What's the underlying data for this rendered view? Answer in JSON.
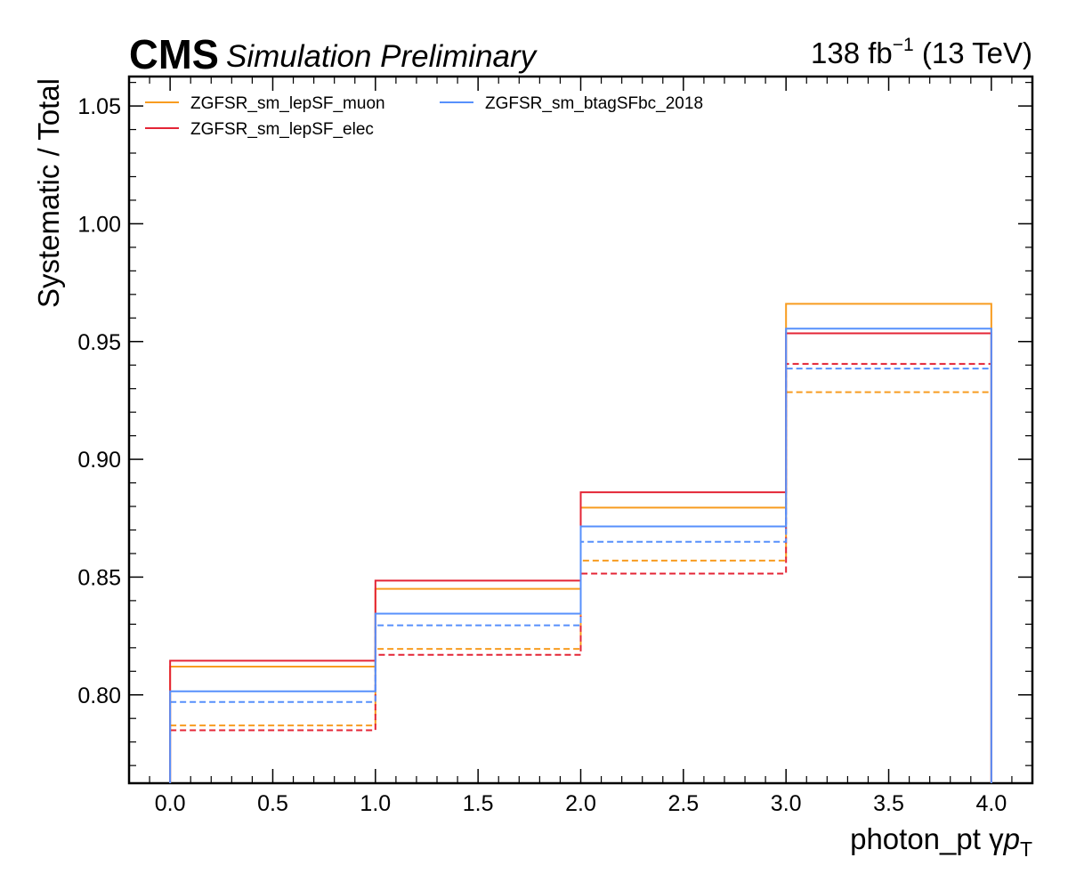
{
  "header": {
    "experiment": "CMS",
    "status": "Simulation Preliminary",
    "lumi_value": "138 fb",
    "lumi_exponent": "−1",
    "energy": "(13 TeV)"
  },
  "chart_data": {
    "type": "step",
    "xlabel_main": "photon_pt",
    "xlabel_symbol": "γ",
    "xlabel_var": "p",
    "xlabel_sub": "T",
    "ylabel": "Systematic / Total",
    "xlim": [
      -0.2,
      4.2
    ],
    "ylim": [
      0.7625,
      1.0625
    ],
    "xticks": [
      0.0,
      0.5,
      1.0,
      1.5,
      2.0,
      2.5,
      3.0,
      3.5,
      4.0
    ],
    "xtick_labels": [
      "0.0",
      "0.5",
      "1.0",
      "1.5",
      "2.0",
      "2.5",
      "3.0",
      "3.5",
      "4.0"
    ],
    "yticks": [
      0.8,
      0.85,
      0.9,
      0.95,
      1.0,
      1.05
    ],
    "ytick_labels": [
      "0.80",
      "0.85",
      "0.90",
      "0.95",
      "1.00",
      "1.05"
    ],
    "bin_edges": [
      0,
      1,
      2,
      3,
      4
    ],
    "grid": false,
    "legend_position": "top-left",
    "series": [
      {
        "name": "ZGFSR_sm_lepSF_muon",
        "color": "#f89c20",
        "up": [
          0.812,
          0.845,
          0.8795,
          0.966
        ],
        "down": [
          0.787,
          0.8195,
          0.857,
          0.9285
        ]
      },
      {
        "name": "ZGFSR_sm_lepSF_elec",
        "color": "#e42536",
        "up": [
          0.8145,
          0.8485,
          0.886,
          0.9535
        ],
        "down": [
          0.785,
          0.817,
          0.8515,
          0.9405
        ]
      },
      {
        "name": "ZGFSR_sm_btagSFbc_2018",
        "color": "#5790fc",
        "up": [
          0.8015,
          0.8345,
          0.8715,
          0.9555
        ],
        "down": [
          0.797,
          0.8295,
          0.865,
          0.9385
        ]
      }
    ]
  }
}
